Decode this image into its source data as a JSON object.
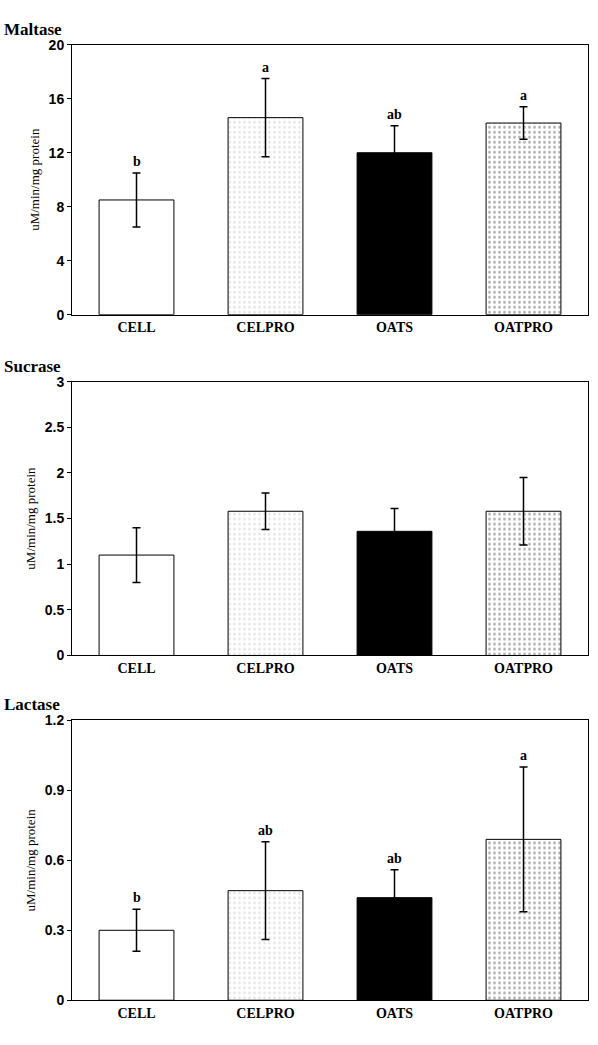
{
  "chart_data": [
    {
      "type": "bar",
      "title": "Maltase",
      "y_label": "uM/min/mg protein",
      "categories": [
        "CELL",
        "CELPRO",
        "OATS",
        "OATPRO"
      ],
      "values": [
        8.5,
        14.6,
        12.0,
        14.2
      ],
      "errors": [
        2.0,
        2.9,
        2.0,
        1.2
      ],
      "letters": [
        "b",
        "a",
        "ab",
        "a"
      ],
      "colors": [
        "#ffffff",
        "#e6e6e6",
        "#000000",
        "#b0b0b0"
      ],
      "ylim": [
        0,
        20
      ],
      "yticks": [
        0,
        4,
        8,
        12,
        16,
        20
      ],
      "grid": false
    },
    {
      "type": "bar",
      "title": "Sucrase",
      "y_label": "uM/min/mg protein",
      "categories": [
        "CELL",
        "CELPRO",
        "OATS",
        "OATPRO"
      ],
      "values": [
        1.1,
        1.58,
        1.36,
        1.58
      ],
      "errors": [
        0.3,
        0.2,
        0.25,
        0.37
      ],
      "colors": [
        "#ffffff",
        "#e6e6e6",
        "#000000",
        "#b0b0b0"
      ],
      "ylim": [
        0,
        3
      ],
      "yticks": [
        0,
        0.5,
        1,
        1.5,
        2,
        2.5,
        3
      ],
      "grid": false
    },
    {
      "type": "bar",
      "title": "Lactase",
      "y_label": "uM/min/mg protein",
      "categories": [
        "CELL",
        "CELPRO",
        "OATS",
        "OATPRO"
      ],
      "values": [
        0.3,
        0.47,
        0.44,
        0.69
      ],
      "errors": [
        0.09,
        0.21,
        0.12,
        0.31
      ],
      "letters": [
        "b",
        "ab",
        "ab",
        "a"
      ],
      "colors": [
        "#ffffff",
        "#e6e6e6",
        "#000000",
        "#b0b0b0"
      ],
      "ylim": [
        0,
        1.2
      ],
      "yticks": [
        0,
        0.3,
        0.6,
        0.9,
        1.2
      ],
      "grid": false
    }
  ]
}
